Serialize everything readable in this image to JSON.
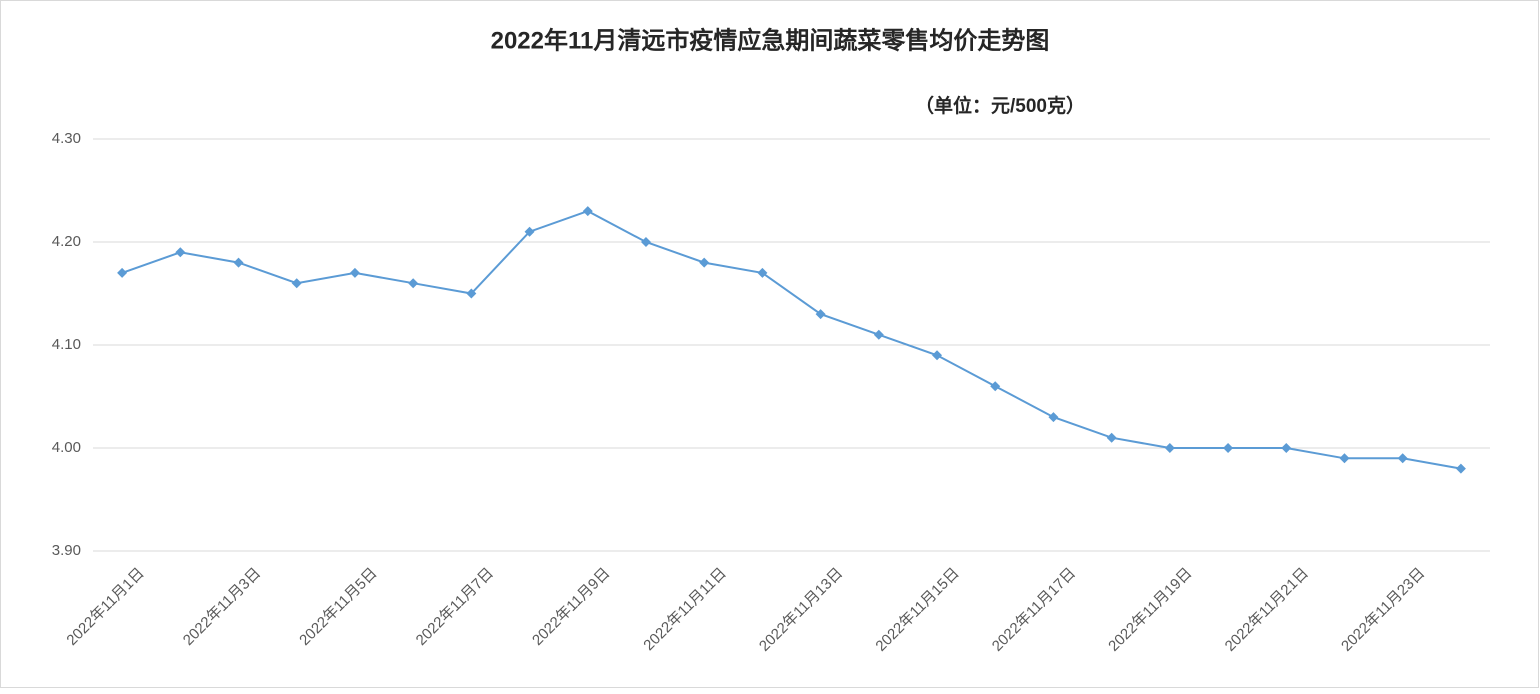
{
  "chart_data": {
    "type": "line",
    "title": "2022年11月清远市疫情应急期间蔬菜零售均价走势图",
    "subtitle": "（单位：元/500克）",
    "categories": [
      "2022年11月1日",
      null,
      "2022年11月3日",
      null,
      "2022年11月5日",
      null,
      "2022年11月7日",
      null,
      "2022年11月9日",
      null,
      "2022年11月11日",
      null,
      "2022年11月13日",
      null,
      "2022年11月15日",
      null,
      "2022年11月17日",
      null,
      "2022年11月19日",
      null,
      "2022年11月21日",
      null,
      "2022年11月23日",
      null
    ],
    "values": [
      4.17,
      4.19,
      4.18,
      4.16,
      4.17,
      4.16,
      4.15,
      4.21,
      4.23,
      4.2,
      4.18,
      4.17,
      4.13,
      4.11,
      4.09,
      4.06,
      4.03,
      4.01,
      4.0,
      4.0,
      4.0,
      3.99,
      3.99,
      3.98
    ],
    "color": "#5b9bd5",
    "ylim": [
      3.9,
      4.3
    ],
    "yticks": [
      {
        "value": 3.9,
        "label": "3.90"
      },
      {
        "value": 4.0,
        "label": "4.00"
      },
      {
        "value": 4.1,
        "label": "4.10"
      },
      {
        "value": 4.2,
        "label": "4.20"
      },
      {
        "value": 4.3,
        "label": "4.30"
      }
    ],
    "grid": true
  }
}
